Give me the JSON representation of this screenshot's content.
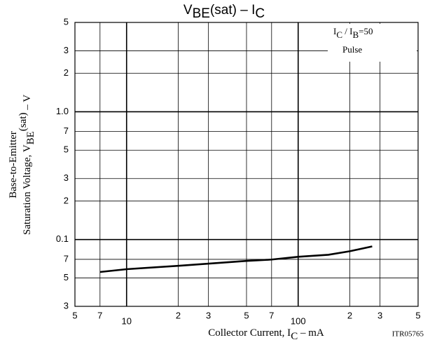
{
  "chart_data": {
    "type": "line",
    "title": [
      {
        "text": "V"
      },
      {
        "text": "BE",
        "sub": true
      },
      {
        "text": "(sat)  –  I"
      },
      {
        "text": "C",
        "sub": true
      }
    ],
    "x_label": [
      {
        "text": "Collector Current, I"
      },
      {
        "text": "C",
        "sub": true
      },
      {
        "text": "  –  mA"
      }
    ],
    "y_label": [
      [
        {
          "text": "Base-to-Emitter"
        }
      ],
      [
        {
          "text": "Saturation Voltage, V"
        },
        {
          "text": "BE",
          "sub": true
        },
        {
          "text": "(sat)",
          "sup": true
        },
        {
          "text": "  –  V"
        }
      ]
    ],
    "annotations": [
      [
        {
          "text": "I"
        },
        {
          "text": "C",
          "sub": true
        },
        {
          "text": " / I"
        },
        {
          "text": "B",
          "sub": true
        },
        {
          "text": "=50"
        }
      ],
      [
        {
          "text": "Pulse"
        }
      ]
    ],
    "figure_id": "ITR05765",
    "x": [
      7,
      10,
      20,
      50,
      70,
      100,
      150,
      200,
      270
    ],
    "series": [
      {
        "color": "#000000",
        "values": [
          0.0557,
          0.0586,
          0.0623,
          0.068,
          0.0697,
          0.0733,
          0.076,
          0.081,
          0.0883
        ]
      }
    ],
    "xscale": "log",
    "yscale": "log",
    "xlim": [
      5,
      500
    ],
    "ylim": [
      0.03,
      5
    ],
    "xticks": [
      5,
      7,
      10,
      {
        "value": 20,
        "label": "2"
      },
      {
        "value": 30,
        "label": "3"
      },
      {
        "value": 50,
        "label": "5"
      },
      {
        "value": 70,
        "label": "7"
      },
      100,
      {
        "value": 200,
        "label": "2"
      },
      {
        "value": 300,
        "label": "3"
      },
      {
        "value": 500,
        "label": "5"
      }
    ],
    "yticks": [
      5,
      3,
      2,
      {
        "value": 1,
        "label": "1.0"
      },
      {
        "value": 0.7,
        "label": "7"
      },
      {
        "value": 0.5,
        "label": "5"
      },
      {
        "value": 0.3,
        "label": "3"
      },
      {
        "value": 0.2,
        "label": "2"
      },
      0.1,
      {
        "value": 0.07,
        "label": "7"
      },
      {
        "value": 0.05,
        "label": "5"
      },
      {
        "value": 0.03,
        "label": "3"
      }
    ],
    "grid": true
  }
}
